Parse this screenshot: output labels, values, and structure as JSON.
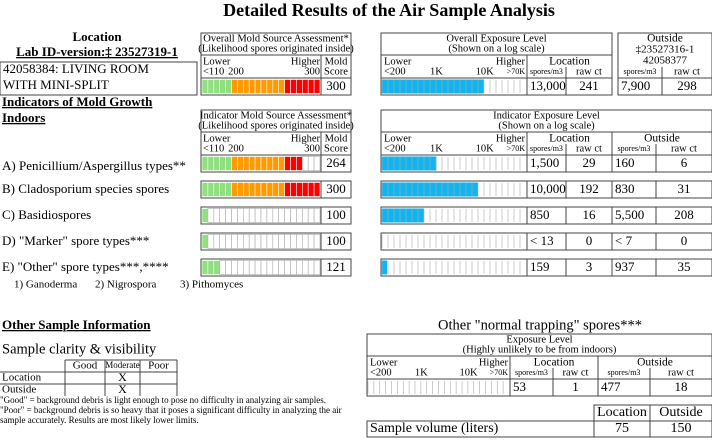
{
  "header": {
    "title": "Detailed Results of the Air Sample Analysis"
  },
  "location": {
    "heading": "Location",
    "lab_id": "Lab ID-version:‡ 23527319-1",
    "name_lines": [
      "42058384: LIVING ROOM",
      "WITH MINI-SPLIT"
    ]
  },
  "outside": {
    "heading": "Outside",
    "lab_id": "‡23527316-1",
    "sample_id": "42058377"
  },
  "scale_labels": {
    "lower": "Lower",
    "higher": "Higher",
    "mold_ticks": [
      "<110",
      "200",
      "300"
    ],
    "mold": "Mold",
    "score": "Score",
    "exposure_ticks": [
      "<200",
      "1K",
      "10K",
      ">70K"
    ],
    "location": "Location",
    "outside": "Outside",
    "spores": "spores/m3",
    "raw": "raw ct"
  },
  "overall": {
    "mold_title": "Overall Mold Source Assessment*",
    "mold_subtitle": "(Likelihood spores originated inside)",
    "exposure_title": "Overall Exposure Level",
    "exposure_subtitle": "(Shown on a log scale)",
    "mold_score": 300,
    "location_spores": "13,000",
    "location_raw": 241,
    "outside_spores": "7,900",
    "outside_raw": 298
  },
  "indicators": {
    "heading_lines": [
      "Indicators of Mold Growth",
      "Indoors"
    ],
    "mold_title": "Indicator Mold Source Assessment*",
    "mold_subtitle": "(Likelihood spores originated inside)",
    "exposure_title": "Indicator Exposure Level",
    "exposure_subtitle": "(Shown on a log scale)",
    "rows": [
      {
        "label": "A) Penicillium/Aspergillus types**",
        "mold_score": 264,
        "location_spores": "1,500",
        "location_raw": 29,
        "outside_spores": "160",
        "outside_raw": 6
      },
      {
        "label": "B) Cladosporium species spores",
        "mold_score": 300,
        "location_spores": "10,000",
        "location_raw": 192,
        "outside_spores": "830",
        "outside_raw": 31
      },
      {
        "label": "C) Basidiospores",
        "mold_score": 100,
        "location_spores": "850",
        "location_raw": 16,
        "outside_spores": "5,500",
        "outside_raw": 208
      },
      {
        "label": "D) \"Marker\" spore types***",
        "mold_score": 100,
        "location_spores": "< 13",
        "location_raw": 0,
        "outside_spores": "< 7",
        "outside_raw": 0
      },
      {
        "label": "E) \"Other\" spore types***,****",
        "mold_score": 121,
        "location_spores": "159",
        "location_raw": 3,
        "outside_spores": "937",
        "outside_raw": 35
      }
    ]
  },
  "footnotes": [
    "1) Ganoderma",
    "2) Nigrospora",
    "3) Pithomyces"
  ],
  "other_info": {
    "heading": "Other Sample Information",
    "clarity_title": "Sample clarity & visibility",
    "columns": [
      "Good",
      "Moderate",
      "Poor"
    ],
    "rows": [
      {
        "label": "Location",
        "rating": "X"
      },
      {
        "label": "Outside",
        "rating": "X"
      }
    ],
    "notes": [
      "\"Good\" = background debris is light enough to pose no difficulty in analyzing air samples.",
      "\"Poor\" = background debris is so heavy that it poses a significant difficulty in analyzing the air",
      "sample accurately. Results are most likely lower limits."
    ]
  },
  "normal_trapping": {
    "title": "Other \"normal trapping\" spores***",
    "exposure_title": "Exposure Level",
    "exposure_subtitle": "(Highly unlikely to be from indoors)",
    "location_spores": "53",
    "location_raw": 1,
    "outside_spores": "477",
    "outside_raw": 18
  },
  "sample_volume": {
    "headers": [
      "Location",
      "Outside"
    ],
    "label": "Sample volume (liters)",
    "values": [
      75,
      150
    ]
  }
}
